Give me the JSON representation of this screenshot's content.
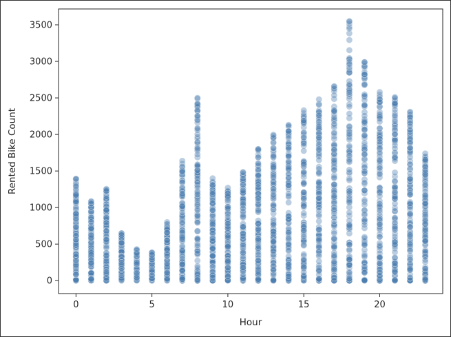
{
  "chart_data": {
    "type": "scatter",
    "xlabel": "Hour",
    "ylabel": "Rented Bike Count",
    "xlim": [
      -1.15,
      24.15
    ],
    "ylim": [
      -177,
      3717
    ],
    "xticks": [
      0,
      5,
      10,
      15,
      20
    ],
    "yticks": [
      0,
      500,
      1000,
      1500,
      2000,
      2500,
      3000,
      3500
    ],
    "grid": false,
    "marker_color": "#4c7fb0",
    "marker_alpha": 0.38,
    "series": [
      {
        "points_by_hour": [
          {
            "x": 0,
            "min": 0,
            "max": 1394
          },
          {
            "x": 1,
            "min": 0,
            "max": 1085
          },
          {
            "x": 2,
            "min": 0,
            "max": 1255
          },
          {
            "x": 3,
            "min": 0,
            "max": 650
          },
          {
            "x": 4,
            "min": 0,
            "max": 430
          },
          {
            "x": 5,
            "min": 0,
            "max": 385
          },
          {
            "x": 6,
            "min": 0,
            "max": 800
          },
          {
            "x": 7,
            "min": 0,
            "max": 1640
          },
          {
            "x": 8,
            "min": 0,
            "max": 2500
          },
          {
            "x": 9,
            "min": 0,
            "max": 1400
          },
          {
            "x": 10,
            "min": 0,
            "max": 1270
          },
          {
            "x": 11,
            "min": 0,
            "max": 1485
          },
          {
            "x": 12,
            "min": 0,
            "max": 1800
          },
          {
            "x": 13,
            "min": 0,
            "max": 1995
          },
          {
            "x": 14,
            "min": 0,
            "max": 2130
          },
          {
            "x": 15,
            "min": 0,
            "max": 2330
          },
          {
            "x": 16,
            "min": 0,
            "max": 2480
          },
          {
            "x": 17,
            "min": 0,
            "max": 2660
          },
          {
            "x": 18,
            "min": 0,
            "max": 3550
          },
          {
            "x": 19,
            "min": 0,
            "max": 2990
          },
          {
            "x": 20,
            "min": 0,
            "max": 2580
          },
          {
            "x": 21,
            "min": 0,
            "max": 2510
          },
          {
            "x": 22,
            "min": 0,
            "max": 2310
          },
          {
            "x": 23,
            "min": 0,
            "max": 1740
          }
        ]
      }
    ]
  }
}
